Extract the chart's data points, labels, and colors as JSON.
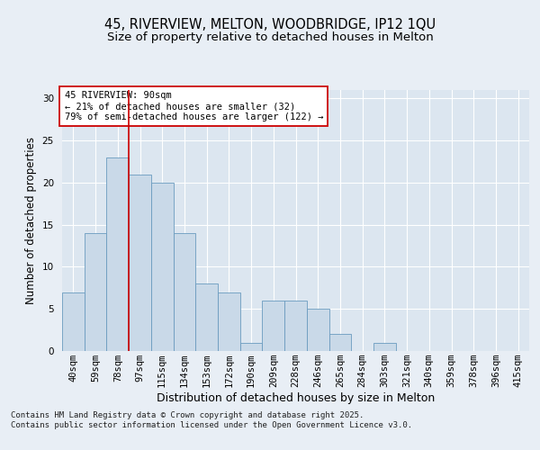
{
  "title_line1": "45, RIVERVIEW, MELTON, WOODBRIDGE, IP12 1QU",
  "title_line2": "Size of property relative to detached houses in Melton",
  "xlabel": "Distribution of detached houses by size in Melton",
  "ylabel": "Number of detached properties",
  "categories": [
    "40sqm",
    "59sqm",
    "78sqm",
    "97sqm",
    "115sqm",
    "134sqm",
    "153sqm",
    "172sqm",
    "190sqm",
    "209sqm",
    "228sqm",
    "246sqm",
    "265sqm",
    "284sqm",
    "303sqm",
    "321sqm",
    "340sqm",
    "359sqm",
    "378sqm",
    "396sqm",
    "415sqm"
  ],
  "values": [
    7,
    14,
    23,
    21,
    20,
    14,
    8,
    7,
    1,
    6,
    6,
    5,
    2,
    0,
    1,
    0,
    0,
    0,
    0,
    0,
    0
  ],
  "bar_color": "#c9d9e8",
  "bar_edge_color": "#6a9bbf",
  "background_color": "#e8eef5",
  "plot_bg_color": "#dce6f0",
  "grid_color": "#ffffff",
  "marker_line_index": 2,
  "marker_line_color": "#cc0000",
  "annotation_text": "45 RIVERVIEW: 90sqm\n← 21% of detached houses are smaller (32)\n79% of semi-detached houses are larger (122) →",
  "annotation_box_color": "#ffffff",
  "annotation_box_edge": "#cc0000",
  "ylim": [
    0,
    31
  ],
  "yticks": [
    0,
    5,
    10,
    15,
    20,
    25,
    30
  ],
  "footer_text": "Contains HM Land Registry data © Crown copyright and database right 2025.\nContains public sector information licensed under the Open Government Licence v3.0.",
  "title_fontsize": 10.5,
  "subtitle_fontsize": 9.5,
  "ylabel_fontsize": 8.5,
  "xlabel_fontsize": 9,
  "tick_fontsize": 7.5,
  "annotation_fontsize": 7.5,
  "footer_fontsize": 6.5
}
